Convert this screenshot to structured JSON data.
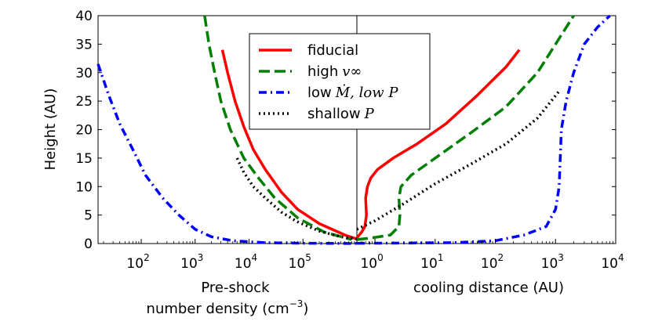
{
  "chart_data": {
    "type": "line",
    "shared_y": {
      "label": "Height (AU)",
      "ylim": [
        0,
        40
      ],
      "ticks": [
        0,
        5,
        10,
        15,
        20,
        25,
        30,
        35,
        40
      ],
      "tick_labels": [
        "0",
        "5",
        "10",
        "15",
        "20",
        "25",
        "30",
        "35",
        "40"
      ]
    },
    "legend": {
      "placement": "top-center of left panel",
      "entries": [
        {
          "key": "fiducial",
          "text": "fiducial",
          "math": ""
        },
        {
          "key": "high_vinf",
          "text": "high",
          "math": "v∞"
        },
        {
          "key": "low_mdot_low_p",
          "text": "low",
          "math": "Ṁ, low P"
        },
        {
          "key": "shallow_p",
          "text": "shallow",
          "math": "P"
        }
      ]
    },
    "series_styles": {
      "fiducial": {
        "color": "#ff0000",
        "dash": "solid"
      },
      "high_vinf": {
        "color": "#008000",
        "dash": "dashed"
      },
      "low_mdot_low_p": {
        "color": "#0000ff",
        "dash": "dashdot"
      },
      "shallow_p": {
        "color": "#000000",
        "dash": "dotted"
      }
    },
    "panels": [
      {
        "id": "left",
        "xscale": "log",
        "xlim": [
          15.8,
          1000000
        ],
        "x_ticks": [
          100,
          1000,
          10000,
          100000
        ],
        "x_tick_labels": [
          {
            "base": "10",
            "exp": "2"
          },
          {
            "base": "10",
            "exp": "3"
          },
          {
            "base": "10",
            "exp": "4"
          },
          {
            "base": "10",
            "exp": "5"
          }
        ],
        "xlabel_line1": "Pre-shock",
        "xlabel_line2_prefix": "number density (cm",
        "xlabel_line2_exp": "−3",
        "xlabel_line2_suffix": ")",
        "series": [
          {
            "key": "fiducial",
            "x": [
              3200,
              4000,
              5500,
              8000,
              12000,
              20000,
              40000,
              80000,
              200000,
              600000,
              1000000
            ],
            "y": [
              34,
              30,
              25,
              20.5,
              16.5,
              13,
              9,
              6,
              3.5,
              1.5,
              0.8
            ]
          },
          {
            "key": "high_vinf",
            "x": [
              1500,
              1800,
              2300,
              3000,
              4500,
              8000,
              15000,
              30000,
              80000,
              250000,
              800000
            ],
            "y": [
              40,
              35,
              30,
              25,
              20,
              15,
              11.5,
              8,
              4.5,
              2,
              0.7
            ]
          },
          {
            "key": "low_mdot_low_p",
            "x": [
              15.8,
              25,
              40,
              70,
              120,
              250,
              500,
              1000,
              2000,
              5000,
              20000,
              100000,
              1000000
            ],
            "y": [
              31.5,
              26,
              21,
              16.5,
              12,
              8,
              5,
              2.5,
              1.2,
              0.5,
              0.15,
              0.05,
              0.02
            ]
          },
          {
            "key": "shallow_p",
            "x": [
              6000,
              8000,
              12000,
              20000,
              40000,
              80000,
              200000,
              500000,
              1000000
            ],
            "y": [
              15,
              12.5,
              10,
              8,
              5.5,
              3.8,
              2.2,
              1.2,
              0.8
            ]
          }
        ]
      },
      {
        "id": "right",
        "xscale": "log",
        "xlim": [
          0.5,
          10000
        ],
        "x_ticks": [
          1,
          10,
          100,
          1000,
          10000
        ],
        "x_tick_labels": [
          {
            "base": "10",
            "exp": "0"
          },
          {
            "base": "10",
            "exp": "1"
          },
          {
            "base": "10",
            "exp": "2"
          },
          {
            "base": "10",
            "exp": "3"
          },
          {
            "base": "10",
            "exp": "4"
          }
        ],
        "xlabel_line1": "cooling distance (AU)",
        "series": [
          {
            "key": "fiducial",
            "x": [
              0.5,
              0.6,
              0.68,
              0.72,
              0.7,
              0.75,
              0.85,
              1.1,
              2,
              5,
              15,
              50,
              150,
              250
            ],
            "y": [
              1,
              2,
              3,
              5,
              8,
              10,
              11.5,
              13,
              15,
              17.5,
              21,
              26,
              31,
              34
            ]
          },
          {
            "key": "high_vinf",
            "x": [
              0.5,
              0.9,
              1.8,
              2.5,
              2.6,
              2.5,
              2.7,
              4,
              10,
              40,
              150,
              500,
              1000,
              2000
            ],
            "y": [
              0.7,
              1,
              1.5,
              3,
              5,
              8,
              10,
              12,
              15,
              19.5,
              24,
              30,
              35,
              40
            ]
          },
          {
            "key": "low_mdot_low_p",
            "x": [
              0.5,
              3,
              20,
              100,
              300,
              700,
              1000,
              1150,
              1200,
              1250,
              1500,
              2000,
              3000,
              5000,
              8000
            ],
            "y": [
              0.05,
              0.08,
              0.15,
              0.5,
              1.5,
              3,
              6,
              10,
              15,
              20,
              25,
              30,
              35,
              38,
              40
            ]
          },
          {
            "key": "shallow_p",
            "x": [
              0.5,
              1,
              3,
              10,
              40,
              150,
              500,
              1200
            ],
            "y": [
              2.5,
              4,
              7,
              10.5,
              14,
              17.5,
              22,
              27
            ]
          }
        ]
      }
    ]
  }
}
